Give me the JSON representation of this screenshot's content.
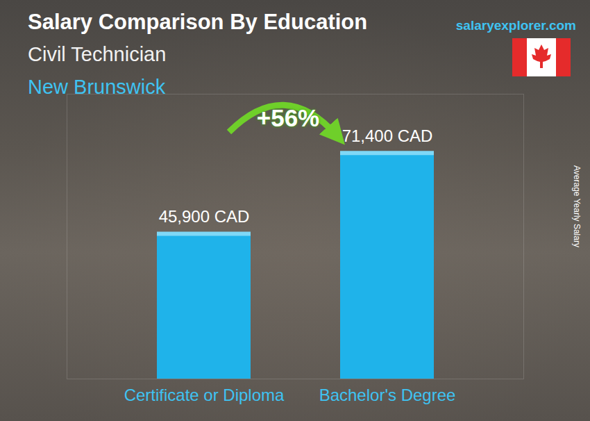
{
  "chart_data": {
    "type": "bar",
    "title": "Salary Comparison By Education",
    "subtitle": [
      "Civil Technician",
      "New Brunswick"
    ],
    "source": "salaryexplorer.com",
    "categories": [
      "Certificate or Diploma",
      "Bachelor's Degree"
    ],
    "values": [
      45900,
      71400
    ],
    "value_labels": [
      "45,900 CAD",
      "71,400 CAD"
    ],
    "data_labels": true,
    "color": "#1fb3ea",
    "y_label": "Average Yearly Salary",
    "ylim": [
      0,
      90000
    ],
    "tick_labels": "x",
    "annotations": [
      "+56%"
    ]
  }
}
